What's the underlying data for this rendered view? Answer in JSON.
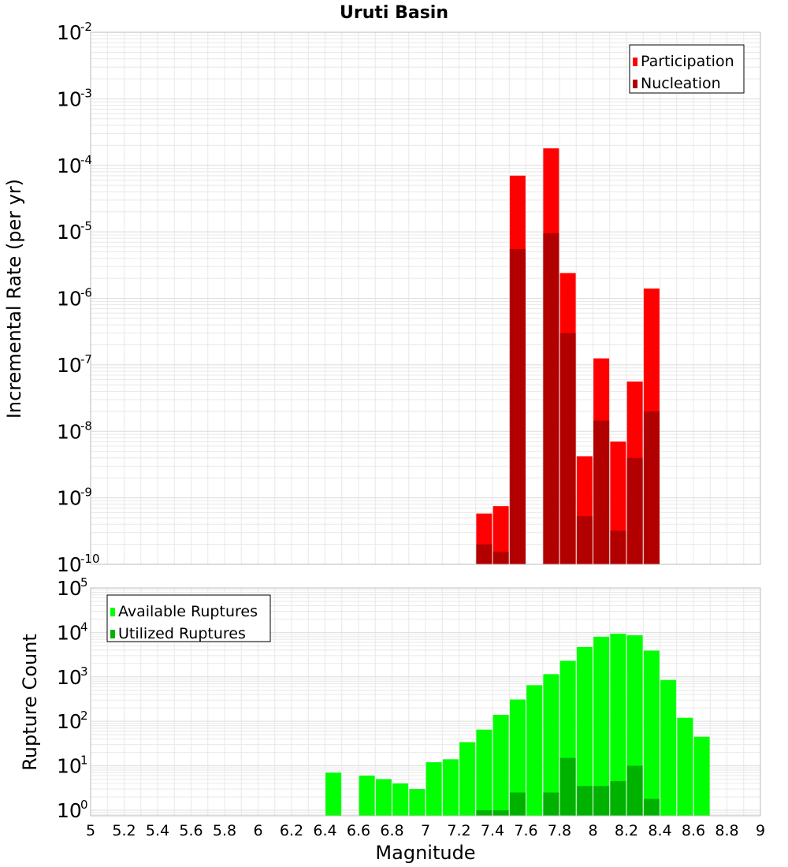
{
  "title": "Uruti Basin",
  "xlabel": "Magnitude",
  "x_ticks": [
    "5",
    "5.2",
    "5.4",
    "5.6",
    "5.8",
    "6",
    "6.2",
    "6.4",
    "6.6",
    "6.8",
    "7",
    "7.2",
    "7.4",
    "7.6",
    "7.8",
    "8",
    "8.2",
    "8.4",
    "8.6",
    "8.8",
    "9"
  ],
  "colors": {
    "participation": "#ff0000",
    "nucleation": "#b20000",
    "available": "#00ff00",
    "utilized": "#00b200",
    "grid": "#e8e8e8",
    "frame": "#bbbbbb"
  },
  "chart_data": [
    {
      "type": "bar",
      "title": "Uruti Basin",
      "ylabel": "Incremental Rate (per yr)",
      "yscale": "log",
      "ylim": [
        1e-10,
        0.01
      ],
      "y_tick_exponents": [
        -2,
        -3,
        -4,
        -5,
        -6,
        -7,
        -8,
        -9,
        -10
      ],
      "xlim": [
        5,
        9
      ],
      "grid": true,
      "legend": "top-right",
      "x": [
        7.35,
        7.45,
        7.55,
        7.75,
        7.85,
        7.95,
        8.05,
        8.15,
        8.25,
        8.35
      ],
      "series": [
        {
          "name": "Participation",
          "values": [
            5.8e-10,
            7.5e-10,
            7e-05,
            0.00018,
            2.4e-06,
            4.2e-09,
            1.25e-07,
            7e-09,
            5.6e-08,
            1.4e-06
          ]
        },
        {
          "name": "Nucleation",
          "values": [
            2e-10,
            1.55e-10,
            5.5e-06,
            9.5e-06,
            3e-07,
            5.3e-10,
            1.45e-08,
            3.2e-10,
            4e-09,
            2e-08
          ]
        }
      ]
    },
    {
      "type": "bar",
      "ylabel": "Rupture Count",
      "xlabel": "Magnitude",
      "yscale": "log",
      "ylim": [
        0.75,
        100000
      ],
      "y_tick_exponents": [
        5,
        4,
        3,
        2,
        1,
        0
      ],
      "xlim": [
        5,
        9
      ],
      "grid": true,
      "legend": "top-left",
      "x": [
        6.45,
        6.55,
        6.65,
        6.75,
        6.85,
        6.95,
        7.05,
        7.15,
        7.25,
        7.35,
        7.45,
        7.55,
        7.65,
        7.75,
        7.85,
        7.95,
        8.05,
        8.15,
        8.25,
        8.35,
        8.45,
        8.55,
        8.65
      ],
      "series": [
        {
          "name": "Available Ruptures",
          "values": [
            7,
            0,
            6,
            5,
            4,
            3,
            12,
            14,
            34,
            65,
            140,
            310,
            650,
            1150,
            2300,
            4700,
            8000,
            9400,
            8600,
            3900,
            850,
            120,
            45
          ]
        },
        {
          "name": "Utilized Ruptures",
          "values": [
            0,
            0,
            0,
            0,
            0,
            0,
            0,
            0,
            0,
            1,
            1,
            2.5,
            0,
            2.5,
            15,
            3.5,
            3.5,
            4.5,
            10,
            1.8,
            0,
            0,
            0
          ]
        }
      ]
    }
  ]
}
